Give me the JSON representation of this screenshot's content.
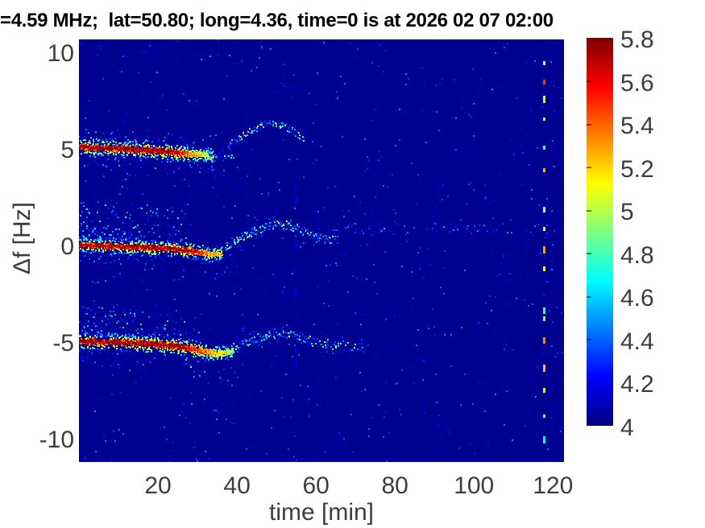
{
  "title": "=4.59 MHz;  lat=50.80; long=4.36, time=0 is at 2026 02 07 02:00",
  "chart_data": {
    "type": "heatmap",
    "subtype": "doppler-spectrogram",
    "title": "=4.59 MHz;  lat=50.80; long=4.36, time=0 is at 2026 02 07 02:00",
    "xlabel": "time [min]",
    "ylabel": "Δf [Hz]",
    "xlim": [
      0,
      122.8
    ],
    "ylim": [
      -11.08,
      10.79
    ],
    "xticks": [
      20,
      40,
      60,
      80,
      100,
      120
    ],
    "yticks": [
      10,
      5,
      0,
      -5,
      -10
    ],
    "grid": false,
    "tick_color": "#3d3d3d",
    "title_color": "#000000",
    "colorbar": {
      "position": "right",
      "colormap": "jet",
      "min": 4,
      "max": 5.8,
      "ticks": [
        5.8,
        5.6,
        5.4,
        5.2,
        5,
        4.8,
        4.6,
        4.4,
        4.2,
        4
      ]
    },
    "background_value": 4.03,
    "features": [
      {
        "kind": "noise",
        "name": "dim-background-grain",
        "count": 5200,
        "val": [
          4.02,
          4.1
        ],
        "vbias": 1.5
      },
      {
        "kind": "noise",
        "name": "sparse-blue-speckles",
        "count": 1500,
        "val": [
          4.1,
          4.5
        ],
        "vbias": 2.5
      },
      {
        "kind": "cloud",
        "name": "upper-band-halo-above",
        "pts": [
          [
            0,
            5.2
          ],
          [
            16,
            5.1
          ],
          [
            33,
            4.9
          ]
        ],
        "offset": [
          0.15,
          1.0
        ],
        "trange": [
          0,
          33
        ],
        "density": [
          8,
          2
        ],
        "val": [
          4.1,
          4.6
        ],
        "bias": 2.2
      },
      {
        "kind": "cloud",
        "name": "upper-band-halo-below",
        "pts": [
          [
            0,
            5.2
          ],
          [
            16,
            5.05
          ],
          [
            33,
            4.85
          ]
        ],
        "offset": [
          -0.15,
          -0.9
        ],
        "trange": [
          0,
          33
        ],
        "density": [
          6,
          2
        ],
        "val": [
          4.1,
          4.6
        ],
        "bias": 2.2
      },
      {
        "kind": "ridge",
        "name": "upper-doppler-band",
        "pts": [
          [
            0,
            5.25
          ],
          [
            8,
            5.2
          ],
          [
            16,
            5.12
          ],
          [
            22,
            5.02
          ],
          [
            27,
            4.92
          ],
          [
            31,
            4.85
          ],
          [
            34,
            4.78
          ]
        ],
        "coreWidth": 0.16,
        "fringeWidth": 0.5,
        "core": {
          "val": 5.78,
          "taperStart": 23,
          "endVal": 4.9
        }
      },
      {
        "kind": "cloud",
        "name": "upper-band-tail",
        "pts": [
          [
            33,
            4.75
          ],
          [
            36,
            4.72
          ],
          [
            39,
            4.68
          ]
        ],
        "offset": [
          -0.2,
          0.2
        ],
        "trange": [
          33,
          39.5
        ],
        "density": [
          5,
          2
        ],
        "val": [
          4.25,
          4.8
        ],
        "bias": 1
      },
      {
        "kind": "cloud",
        "name": "upper-band-droop",
        "pts": [
          [
            28,
            4.5
          ],
          [
            33,
            4.0
          ],
          [
            38,
            3.45
          ],
          [
            41,
            3.3
          ]
        ],
        "offset": [
          -0.25,
          0.25
        ],
        "trange": [
          28,
          41
        ],
        "density": [
          2.5,
          1.2
        ],
        "val": [
          4.08,
          4.4
        ],
        "bias": 1
      },
      {
        "kind": "cloud",
        "name": "upper-arc",
        "pts": [
          [
            37.5,
            5.3
          ],
          [
            41,
            5.8
          ],
          [
            44,
            6.2
          ],
          [
            47,
            6.45
          ],
          [
            49.5,
            6.5
          ],
          [
            52,
            6.3
          ],
          [
            54.5,
            6.0
          ],
          [
            57,
            5.65
          ]
        ],
        "offset": [
          -0.18,
          0.18
        ],
        "trange": [
          37.5,
          57
        ],
        "density": [
          5,
          5
        ],
        "val": [
          4.25,
          4.85
        ],
        "bias": 1,
        "warm": {
          "prob": 0.05,
          "val": [
            4.9,
            5.3
          ]
        }
      },
      {
        "kind": "cloud",
        "name": "upper-arc-tail",
        "pts": [
          [
            57,
            5.6
          ],
          [
            63,
            5.3
          ]
        ],
        "offset": [
          -0.15,
          0.15
        ],
        "trange": [
          57,
          63
        ],
        "density": [
          2,
          1
        ],
        "val": [
          4.1,
          4.4
        ],
        "bias": 1
      },
      {
        "kind": "cloud",
        "name": "zero-band-upper-cloud",
        "pts": [
          [
            0,
            0.35
          ],
          [
            27,
            0.1
          ]
        ],
        "offset": [
          0.1,
          2.1
        ],
        "trange": [
          0,
          27
        ],
        "density": [
          18,
          4
        ],
        "val": [
          4.1,
          4.7
        ],
        "bias": 2.3
      },
      {
        "kind": "cloud",
        "name": "zero-band-lower-cloud",
        "pts": [
          [
            0,
            0.0
          ],
          [
            25,
            -0.25
          ]
        ],
        "offset": [
          -0.1,
          -0.7
        ],
        "trange": [
          0,
          25
        ],
        "density": [
          5,
          2
        ],
        "val": [
          4.1,
          4.5
        ],
        "bias": 2
      },
      {
        "kind": "ridge",
        "name": "zero-doppler-band",
        "pts": [
          [
            0,
            0.18
          ],
          [
            10,
            0.12
          ],
          [
            18,
            0.05
          ],
          [
            24,
            -0.02
          ],
          [
            29,
            -0.15
          ],
          [
            33,
            -0.3
          ],
          [
            36,
            -0.28
          ]
        ],
        "coreWidth": 0.16,
        "fringeWidth": 0.45,
        "core": {
          "val": 5.78,
          "taperStart": 27,
          "endVal": 5.15
        }
      },
      {
        "kind": "cloud",
        "name": "zero-band-droop",
        "pts": [
          [
            30,
            -0.5
          ],
          [
            35,
            -0.9
          ],
          [
            40,
            -1.4
          ]
        ],
        "offset": [
          -0.25,
          0.25
        ],
        "trange": [
          30,
          40
        ],
        "density": [
          2.5,
          1.2
        ],
        "val": [
          4.08,
          4.4
        ],
        "bias": 1
      },
      {
        "kind": "cloud",
        "name": "zero-arc",
        "pts": [
          [
            37,
            0.1
          ],
          [
            40,
            0.5
          ],
          [
            44,
            0.9
          ],
          [
            48,
            1.18
          ],
          [
            51,
            1.28
          ],
          [
            54,
            1.1
          ],
          [
            58,
            0.8
          ],
          [
            62,
            0.55
          ],
          [
            65,
            0.45
          ]
        ],
        "offset": [
          -0.22,
          0.22
        ],
        "trange": [
          37,
          65
        ],
        "density": [
          7,
          4
        ],
        "val": [
          4.3,
          4.95
        ],
        "bias": 1,
        "warm": {
          "prob": 0.06,
          "val": [
            5.0,
            5.45
          ]
        }
      },
      {
        "kind": "cloud",
        "name": "zero-arc-halo",
        "pts": [
          [
            37,
            0.1
          ],
          [
            48,
            1.18
          ],
          [
            58,
            0.8
          ],
          [
            65,
            0.45
          ]
        ],
        "offset": [
          -0.6,
          0.6
        ],
        "trange": [
          37,
          65
        ],
        "density": [
          2,
          1
        ],
        "val": [
          4.1,
          4.45
        ],
        "bias": 1
      },
      {
        "kind": "cloud",
        "name": "one-hz-faint-line",
        "pts": [
          [
            60,
            0.95
          ],
          [
            90,
            1.05
          ],
          [
            122,
            0.95
          ]
        ],
        "offset": [
          -0.3,
          0.3
        ],
        "trange": [
          60,
          121.8
        ],
        "density": [
          1.8,
          1.4
        ],
        "val": [
          4.08,
          4.5
        ],
        "bias": 1,
        "warm": {
          "prob": 0.02,
          "val": [
            4.5,
            4.75
          ]
        }
      },
      {
        "kind": "cloud",
        "name": "lower-band-upper-cloud",
        "pts": [
          [
            0,
            -4.6
          ],
          [
            15,
            -4.7
          ],
          [
            30,
            -4.95
          ]
        ],
        "offset": [
          0.1,
          1.7
        ],
        "trange": [
          0,
          30
        ],
        "density": [
          14,
          3
        ],
        "val": [
          4.1,
          4.7
        ],
        "bias": 2.2
      },
      {
        "kind": "cloud",
        "name": "lower-band-lower-cloud",
        "pts": [
          [
            0,
            -5.0
          ],
          [
            22,
            -5.35
          ]
        ],
        "offset": [
          -0.1,
          -1.1
        ],
        "trange": [
          0,
          22
        ],
        "density": [
          5,
          2
        ],
        "val": [
          4.1,
          4.5
        ],
        "bias": 2
      },
      {
        "kind": "ridge",
        "name": "lower-doppler-band",
        "pts": [
          [
            0,
            -4.8
          ],
          [
            8,
            -4.83
          ],
          [
            16,
            -4.9
          ],
          [
            22,
            -5.0
          ],
          [
            27,
            -5.12
          ],
          [
            31,
            -5.3
          ],
          [
            35,
            -5.42
          ],
          [
            39,
            -5.32
          ]
        ],
        "coreWidth": 0.17,
        "fringeWidth": 0.5,
        "core": {
          "val": 5.78,
          "taperStart": 25,
          "endVal": 5.0
        }
      },
      {
        "kind": "cloud",
        "name": "lower-band-dip-tail",
        "pts": [
          [
            26,
            -5.6
          ],
          [
            30,
            -6.1
          ],
          [
            33,
            -6.6
          ]
        ],
        "offset": [
          -0.4,
          0.3
        ],
        "trange": [
          26,
          33
        ],
        "density": [
          3,
          2
        ],
        "val": [
          4.2,
          4.9
        ],
        "bias": 1,
        "warm": {
          "prob": 0.06,
          "val": [
            4.9,
            5.3
          ]
        }
      },
      {
        "kind": "cloud",
        "name": "lower-arc",
        "pts": [
          [
            39,
            -5.15
          ],
          [
            43,
            -4.8
          ],
          [
            47,
            -4.5
          ],
          [
            50,
            -4.38
          ],
          [
            53,
            -4.45
          ],
          [
            56,
            -4.62
          ],
          [
            60,
            -4.88
          ],
          [
            64,
            -5.02
          ],
          [
            68,
            -5.08
          ],
          [
            72,
            -5.12
          ]
        ],
        "offset": [
          -0.25,
          0.25
        ],
        "trange": [
          39,
          72
        ],
        "density": [
          6,
          2.5
        ],
        "val": [
          4.25,
          4.9
        ],
        "bias": 1,
        "warm": {
          "prob": 0.05,
          "val": [
            5.0,
            5.45
          ]
        }
      },
      {
        "kind": "cloud",
        "name": "lower-arc-halo",
        "pts": [
          [
            39,
            -5.1
          ],
          [
            50,
            -4.4
          ],
          [
            60,
            -4.9
          ],
          [
            72,
            -5.1
          ]
        ],
        "offset": [
          -0.55,
          0.55
        ],
        "trange": [
          39,
          72
        ],
        "density": [
          2,
          1
        ],
        "val": [
          4.08,
          4.4
        ],
        "bias": 1
      },
      {
        "kind": "cloud",
        "name": "lower-band-far-tail",
        "pts": [
          [
            72,
            -5.12
          ],
          [
            82,
            -5.12
          ]
        ],
        "offset": [
          -0.2,
          0.2
        ],
        "trange": [
          72,
          82
        ],
        "density": [
          1.2,
          0.6
        ],
        "val": [
          4.06,
          4.3
        ],
        "bias": 1
      },
      {
        "kind": "column",
        "name": "artifact-dash-column",
        "t": 117.7,
        "frange": [
          -10.6,
          10.5
        ],
        "dashes": 17,
        "dashLen": [
          3,
          9
        ],
        "val": [
          4.6,
          5.5
        ],
        "whiten": 0.35
      },
      {
        "kind": "column",
        "name": "faint-vertical-streak",
        "t": 54.8,
        "frange": [
          -7.0,
          5.0
        ],
        "dashes": 7,
        "dashLen": [
          3,
          10
        ],
        "val": [
          4.1,
          4.3
        ],
        "whiten": 0
      }
    ]
  }
}
